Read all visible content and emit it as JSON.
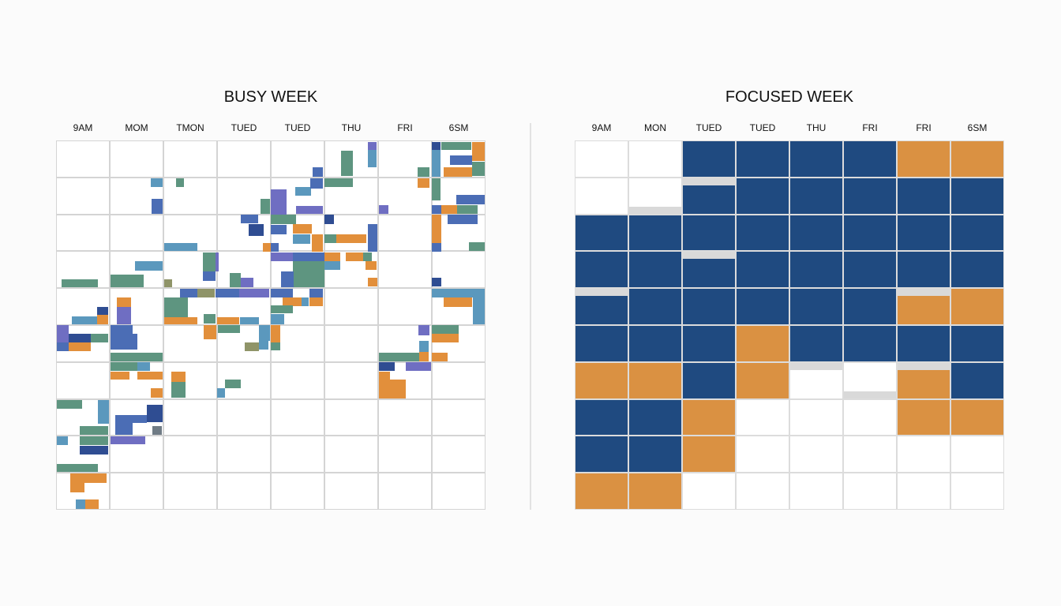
{
  "busy": {
    "title": "BUSY WEEK",
    "columns": [
      "9AM",
      "MOM",
      "TMON",
      "TUED",
      "TUED",
      "THU",
      "FRI",
      "6SM"
    ],
    "palette": {
      "g": "#5e9580",
      "b": "#4b6db5",
      "p": "#6f6ec2",
      "o": "#e28f3b",
      "t": "#5b98bd",
      "d": "#2f4d92",
      "olive": "#8f9468",
      "gray": "#707c86"
    }
  },
  "focused": {
    "title": "FOCUSED WEEK",
    "columns": [
      "9AM",
      "MON",
      "TUED",
      "TUED",
      "THU",
      "FRI",
      "FRI",
      "6SM"
    ],
    "colors": {
      "B": "#1f4a80",
      "O": "#da9142",
      "W": "#ffffff"
    },
    "cells": [
      "WWBBBBOO",
      "WWBBBBBB",
      "BBBBBBBB",
      "BBBBBBBB",
      "BBBBBBOO",
      "BBBOBBBB",
      "OOBOWWOB",
      "BBOWWWOO",
      "BBOWWWWW",
      "OOWWWWWW"
    ]
  }
}
